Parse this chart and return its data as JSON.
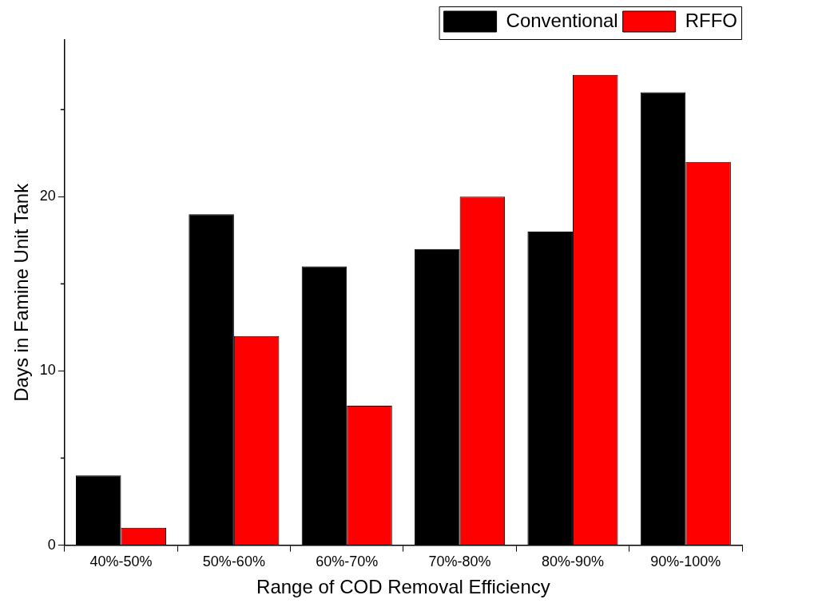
{
  "chart_data": {
    "type": "bar",
    "xlabel": "Range of COD Removal Efficiency",
    "ylabel": "Days in Famine Unit Tank",
    "categories": [
      "40%-50%",
      "50%-60%",
      "60%-70%",
      "70%-80%",
      "80%-90%",
      "90%-100%"
    ],
    "series": [
      {
        "name": "Conventional",
        "color": "#000000",
        "values": [
          4,
          19,
          16,
          17,
          18,
          26
        ]
      },
      {
        "name": "RFFO",
        "color": "#ff0000",
        "values": [
          1,
          12,
          8,
          20,
          27,
          22
        ]
      }
    ],
    "ylim": [
      0,
      29
    ],
    "yticks": [
      0,
      {
        "value": 5,
        "label": null
      },
      10,
      {
        "value": 15,
        "label": null
      },
      20,
      {
        "value": 25,
        "label": null
      }
    ],
    "legend": "top right"
  }
}
